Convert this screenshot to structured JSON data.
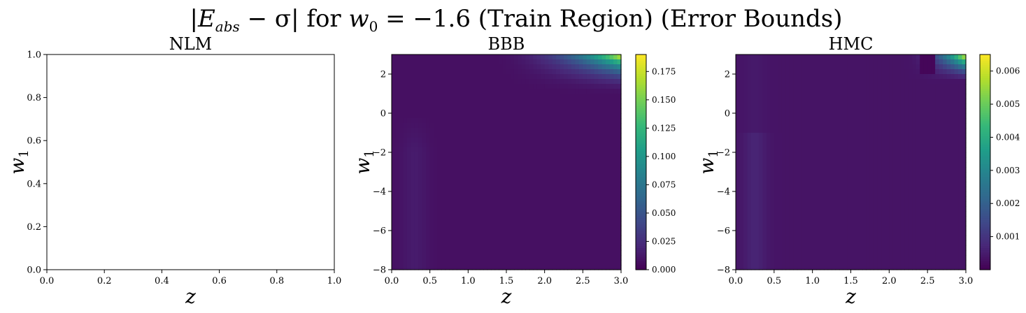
{
  "figure": {
    "title": "|E_abs − σ| for w0 = −1.6 (Train Region) (Error Bounds)",
    "title_parts": {
      "bar_open": "|",
      "E": "E",
      "abs_sub": "abs",
      "minus_sigma": " − σ",
      "bar_close": "|",
      "for": " for ",
      "w": "w",
      "zero_sub": "0",
      "rest": " = −1.6 (Train Region) (Error Bounds)"
    }
  },
  "colormap": "viridis",
  "colors": [
    "#440154",
    "#482878",
    "#3e4989",
    "#31688e",
    "#26828e",
    "#1f9e89",
    "#35b779",
    "#6ece58",
    "#b5de2b",
    "#fde725"
  ],
  "chart_data": [
    {
      "type": "heatmap",
      "title": "NLM",
      "xlabel": "z",
      "ylabel_main": "w",
      "ylabel_sub": "1",
      "xlim": [
        0.0,
        1.0
      ],
      "ylim": [
        0.0,
        1.0
      ],
      "xticks": [
        0.0,
        0.2,
        0.4,
        0.6,
        0.8,
        1.0
      ],
      "yticks": [
        0.0,
        0.2,
        0.4,
        0.6,
        0.8,
        1.0
      ],
      "xtick_labels": [
        "0.0",
        "0.2",
        "0.4",
        "0.6",
        "0.8",
        "1.0"
      ],
      "ytick_labels": [
        "0.0",
        "0.2",
        "0.4",
        "0.6",
        "0.8",
        "1.0"
      ],
      "empty": true
    },
    {
      "type": "heatmap",
      "title": "BBB",
      "xlabel": "z",
      "ylabel_main": "w",
      "ylabel_sub": "1",
      "xlim": [
        0.0,
        3.0
      ],
      "ylim": [
        -8,
        3
      ],
      "xticks": [
        0.0,
        0.5,
        1.0,
        1.5,
        2.0,
        2.5,
        3.0
      ],
      "yticks": [
        2,
        0,
        -2,
        -4,
        -6,
        -8
      ],
      "xtick_labels": [
        "0.0",
        "0.5",
        "1.0",
        "1.5",
        "2.0",
        "2.5",
        "3.0"
      ],
      "ytick_labels": [
        "2",
        "0",
        "−2",
        "−4",
        "−6",
        "−8"
      ],
      "colorbar": {
        "range": [
          0.0,
          0.19
        ],
        "ticks": [
          0.0,
          0.025,
          0.05,
          0.075,
          0.1,
          0.125,
          0.15,
          0.175
        ],
        "tick_labels": [
          "0.000",
          "0.025",
          "0.050",
          "0.075",
          "0.100",
          "0.125",
          "0.150",
          "0.175"
        ]
      },
      "grid": {
        "nx": 60,
        "ny": 44
      },
      "description_of_values": "near zero (~0.005–0.012) across most of the domain; rises sharply in the top-right corner (z → 3, w1 → 3) to ~0.19; faint ridge at z ≈ 0.3 for w1 < −3"
    },
    {
      "type": "heatmap",
      "title": "HMC",
      "xlabel": "z",
      "ylabel_main": "w",
      "ylabel_sub": "1",
      "xlim": [
        0.0,
        3.0
      ],
      "ylim": [
        -8,
        3
      ],
      "xticks": [
        0.0,
        0.5,
        1.0,
        1.5,
        2.0,
        2.5,
        3.0
      ],
      "yticks": [
        2,
        0,
        -2,
        -4,
        -6,
        -8
      ],
      "xtick_labels": [
        "0.0",
        "0.5",
        "1.0",
        "1.5",
        "2.0",
        "2.5",
        "3.0"
      ],
      "ytick_labels": [
        "2",
        "0",
        "−2",
        "−4",
        "−6",
        "−8"
      ],
      "colorbar": {
        "range": [
          0.0,
          0.0065
        ],
        "ticks": [
          0.001,
          0.002,
          0.003,
          0.004,
          0.005,
          0.006
        ],
        "tick_labels": [
          "0.001",
          "0.002",
          "0.003",
          "0.004",
          "0.005",
          "0.006"
        ]
      },
      "grid": {
        "nx": 60,
        "ny": 44
      },
      "description_of_values": "~0.0002–0.0006 across most of the domain; rises in the top-right corner to ~0.0065; dark vertical band near z ≈ 2.5 at the top; faint ridge at z ≈ 0.2"
    }
  ]
}
